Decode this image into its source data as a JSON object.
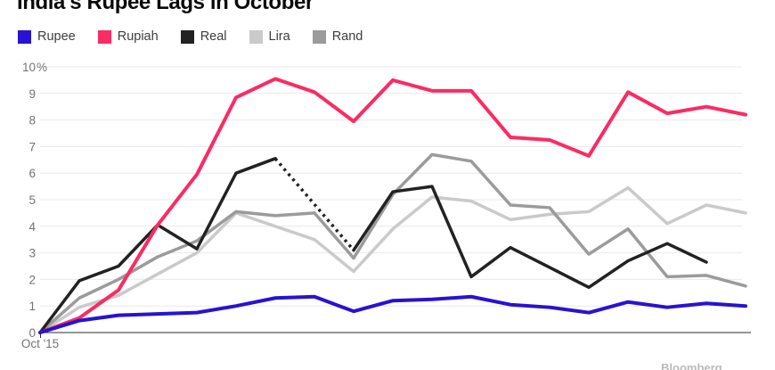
{
  "header": {
    "title": "India's Rupee Lags in October"
  },
  "legend": {
    "items": [
      {
        "label": "Rupee",
        "color": "#2912d1"
      },
      {
        "label": "Rupiah",
        "color": "#fb2b64"
      },
      {
        "label": "Real",
        "color": "#222222"
      },
      {
        "label": "Lira",
        "color": "#cacaca"
      },
      {
        "label": "Rand",
        "color": "#9b9b9b"
      }
    ]
  },
  "chart_data": {
    "type": "line",
    "title": "India's Rupee Lags in October",
    "xlabel": "Oct '15",
    "ylabel": "",
    "ylim": [
      0,
      10
    ],
    "yticks": [
      "0",
      "1",
      "2",
      "3",
      "4",
      "5",
      "6",
      "7",
      "8",
      "9",
      "10%"
    ],
    "grid": true,
    "legend_position": "top-left",
    "x_points": 19,
    "note": "percent change since Oct 2015; Real series has a dotted (estimated) span and ends one point early",
    "series": [
      {
        "name": "Rupee",
        "color": "#2912d1",
        "width": 4,
        "values": [
          0,
          0.45,
          0.65,
          0.7,
          0.75,
          1.0,
          1.3,
          1.35,
          0.8,
          1.2,
          1.25,
          1.35,
          1.05,
          0.95,
          0.75,
          1.15,
          0.95,
          1.1,
          1.0
        ]
      },
      {
        "name": "Rupiah",
        "color": "#fb2b64",
        "width": 4,
        "values": [
          0,
          0.55,
          1.6,
          4.05,
          5.95,
          8.85,
          9.55,
          9.05,
          7.95,
          9.5,
          9.1,
          9.1,
          7.35,
          7.25,
          6.65,
          9.05,
          8.25,
          8.5,
          8.2
        ]
      },
      {
        "name": "Real",
        "color": "#222222",
        "width": 3.5,
        "values": [
          0,
          1.95,
          2.5,
          4.05,
          3.15,
          6.0,
          6.55,
          null,
          3.1,
          5.3,
          5.5,
          2.1,
          3.2,
          2.45,
          1.7,
          2.7,
          3.35,
          2.65,
          null
        ]
      },
      {
        "name": "Lira",
        "color": "#cacaca",
        "width": 3.5,
        "values": [
          0,
          0.95,
          1.4,
          2.2,
          3.0,
          4.5,
          4.0,
          3.5,
          2.3,
          3.9,
          5.1,
          4.95,
          4.25,
          4.45,
          4.55,
          5.45,
          4.1,
          4.8,
          4.5
        ]
      },
      {
        "name": "Rand",
        "color": "#9b9b9b",
        "width": 3.5,
        "values": [
          0,
          1.3,
          2.0,
          2.85,
          3.45,
          4.55,
          4.4,
          4.5,
          2.8,
          5.2,
          6.7,
          6.45,
          4.8,
          4.7,
          2.95,
          3.9,
          2.1,
          2.15,
          1.75
        ]
      }
    ],
    "colors": {
      "gridline": "#e9e9e9",
      "axis": "#2e2e2e",
      "tick_label": "#737373"
    }
  },
  "attribution": {
    "text": "Bloomberg"
  }
}
